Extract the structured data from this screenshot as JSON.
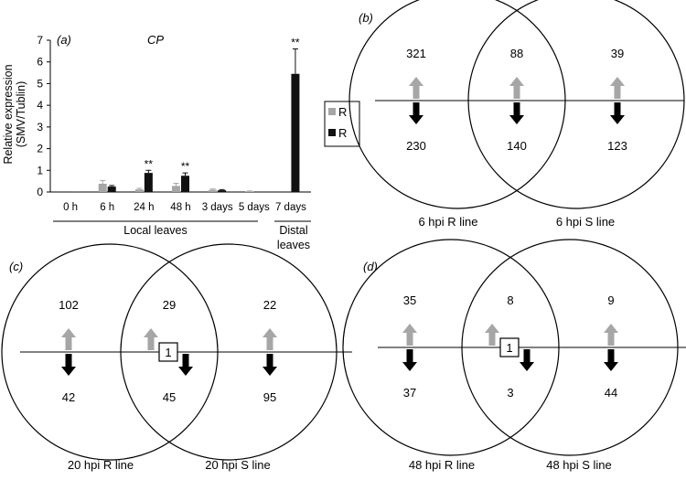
{
  "chart_data": [
    {
      "type": "bar",
      "panel_label": "(a)",
      "title": "CP",
      "ylabel": "Relative expression\n(SMV/Tublin)",
      "ylim": [
        0,
        7
      ],
      "y_ticks": [
        "0",
        "1",
        "2",
        "3",
        "4",
        "5",
        "6",
        "7"
      ],
      "categories": [
        "0 h",
        "6 h",
        "24 h",
        "48 h",
        "3 days",
        "5 days",
        "7 days"
      ],
      "group_labels": [
        "Local leaves",
        "Distal leaves"
      ],
      "legend": [
        "R",
        "R"
      ],
      "legend_position": "right",
      "colors": [
        "#a6a6a6",
        "#111111"
      ],
      "series": [
        {
          "name": "R",
          "color": "#a6a6a6",
          "values": [
            0,
            0.38,
            0.12,
            0.28,
            0.1,
            0.03,
            0
          ],
          "errors": [
            0,
            0.15,
            0.05,
            0.12,
            0.04,
            0.02,
            0
          ],
          "significance": [
            "",
            "",
            "",
            "",
            "",
            "",
            ""
          ]
        },
        {
          "name": "R",
          "color": "#111111",
          "values": [
            0.02,
            0.25,
            0.88,
            0.75,
            0.08,
            0,
            5.45
          ],
          "errors": [
            0,
            0.05,
            0.12,
            0.13,
            0.03,
            0,
            1.15
          ],
          "significance": [
            "",
            "",
            "**",
            "**",
            "",
            "",
            "**"
          ]
        }
      ]
    },
    {
      "type": "venn",
      "panel_label": "(b)",
      "sets": [
        "6 hpi  R line",
        "6 hpi  S line"
      ],
      "up": {
        "left": "321",
        "overlap": "88",
        "right": "39"
      },
      "down": {
        "left": "230",
        "overlap": "140",
        "right": "123"
      },
      "contra_regulated": ""
    },
    {
      "type": "venn",
      "panel_label": "(c)",
      "sets": [
        "20 hpi  R line",
        "20 hpi  S line"
      ],
      "up": {
        "left": "102",
        "overlap": "29",
        "right": "22"
      },
      "down": {
        "left": "42",
        "overlap": "45",
        "right": "95"
      },
      "contra_regulated": "1"
    },
    {
      "type": "venn",
      "panel_label": "(d)",
      "sets": [
        "48 hpi  R line",
        "48 hpi  S line"
      ],
      "up": {
        "left": "35",
        "overlap": "8",
        "right": "9"
      },
      "down": {
        "left": "37",
        "overlap": "3",
        "right": "44"
      },
      "contra_regulated": "1"
    }
  ]
}
